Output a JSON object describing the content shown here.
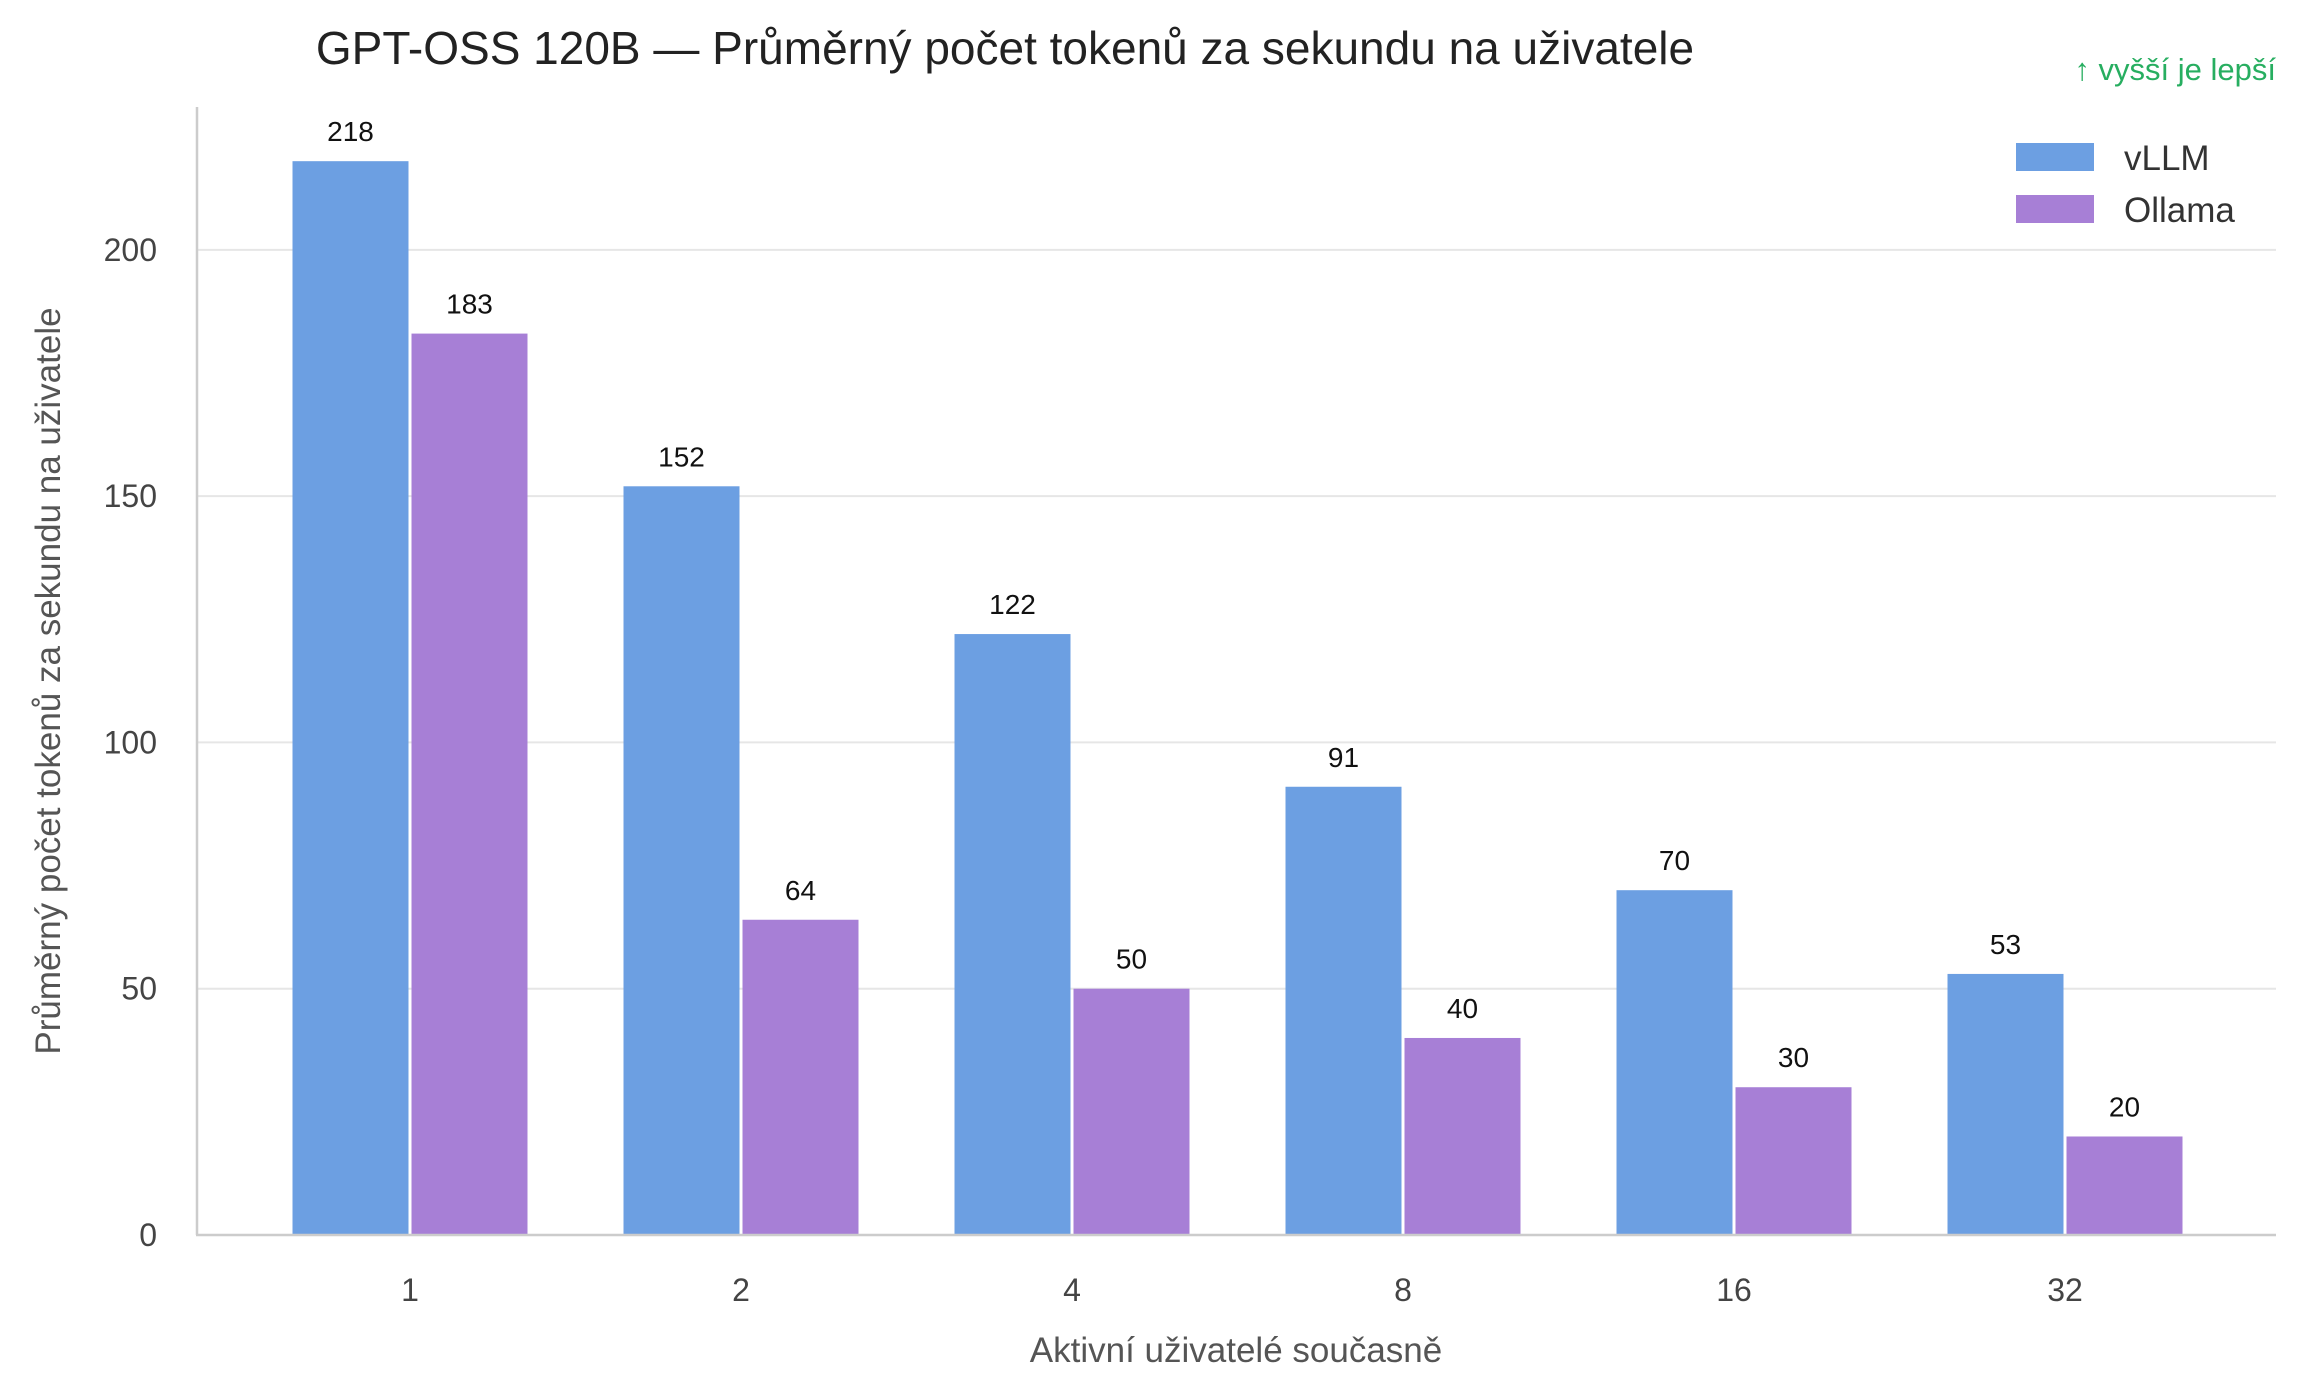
{
  "chart_data": {
    "type": "bar",
    "title": "GPT-OSS 120B — Průměrný počet tokenů za sekundu na uživatele",
    "note": "↑ vyšší je lepší",
    "xlabel": "Aktivní uživatelé současně",
    "ylabel": "Průměrný počet tokenů za sekundu na uživatele",
    "categories": [
      "1",
      "2",
      "4",
      "8",
      "16",
      "32"
    ],
    "series": [
      {
        "name": "vLLM",
        "color": "#6c9fe2",
        "values": [
          218,
          152,
          122,
          91,
          70,
          53
        ]
      },
      {
        "name": "Ollama",
        "color": "#a77fd6",
        "values": [
          183,
          64,
          50,
          40,
          30,
          20
        ]
      }
    ],
    "ylim": [
      0,
      229
    ],
    "yticks": [
      0,
      50,
      100,
      150,
      200
    ],
    "grid": true,
    "legend_position": "top-right",
    "note_color": "#27ae60"
  }
}
